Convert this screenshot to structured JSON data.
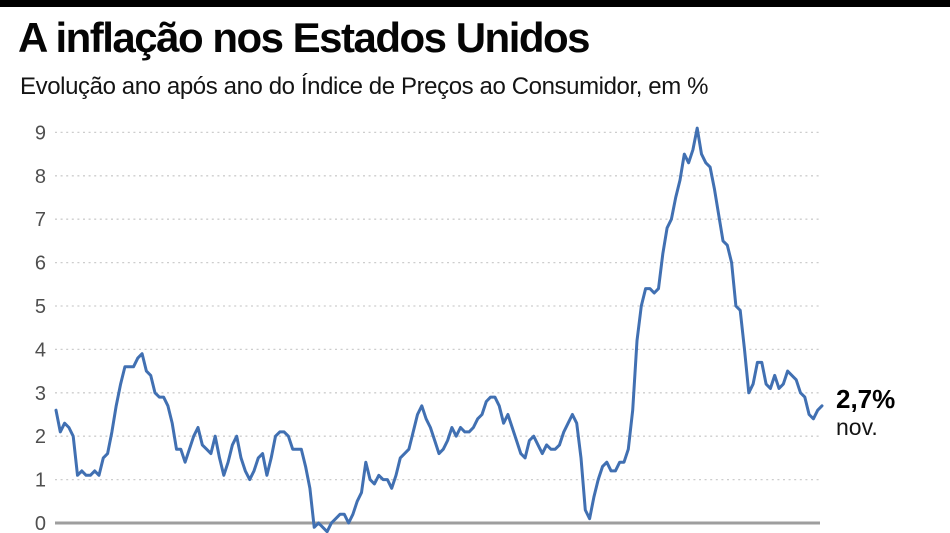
{
  "header": {
    "title": "A inflação nos Estados Unidos",
    "subtitle": "Evolução ano após ano do Índice de Preços ao Consumidor, em %"
  },
  "annotation": {
    "value": "2,7%",
    "month": "nov."
  },
  "colors": {
    "line": "#4170b2",
    "topbar": "#000000",
    "grid": "#cdcdcd",
    "axis": "#9e9e9e"
  },
  "chart_data": {
    "type": "line",
    "title": "A inflação nos Estados Unidos",
    "subtitle": "Evolução ano após ano do Índice de Preços ao Consumidor, em %",
    "unit": "%",
    "frequency": "monthly",
    "x_start": "2010-01",
    "x_end": "2024-11",
    "y_ticks": [
      0,
      1,
      2,
      3,
      4,
      5,
      6,
      7,
      8,
      9
    ],
    "ylim": [
      -0.3,
      9.3
    ],
    "grid": "horizontal-dashed",
    "legend": "none",
    "line_color": "#4170b2",
    "last_point_label": "2,7% nov.",
    "values": [
      2.6,
      2.1,
      2.3,
      2.2,
      2.0,
      1.1,
      1.2,
      1.1,
      1.1,
      1.2,
      1.1,
      1.5,
      1.6,
      2.1,
      2.7,
      3.2,
      3.6,
      3.6,
      3.6,
      3.8,
      3.9,
      3.5,
      3.4,
      3.0,
      2.9,
      2.9,
      2.7,
      2.3,
      1.7,
      1.7,
      1.4,
      1.7,
      2.0,
      2.2,
      1.8,
      1.7,
      1.6,
      2.0,
      1.5,
      1.1,
      1.4,
      1.8,
      2.0,
      1.5,
      1.2,
      1.0,
      1.2,
      1.5,
      1.6,
      1.1,
      1.5,
      2.0,
      2.1,
      2.1,
      2.0,
      1.7,
      1.7,
      1.7,
      1.3,
      0.8,
      -0.1,
      0.0,
      -0.1,
      -0.2,
      0.0,
      0.1,
      0.2,
      0.2,
      0.0,
      0.2,
      0.5,
      0.7,
      1.4,
      1.0,
      0.9,
      1.1,
      1.0,
      1.0,
      0.8,
      1.1,
      1.5,
      1.6,
      1.7,
      2.1,
      2.5,
      2.7,
      2.4,
      2.2,
      1.9,
      1.6,
      1.7,
      1.9,
      2.2,
      2.0,
      2.2,
      2.1,
      2.1,
      2.2,
      2.4,
      2.5,
      2.8,
      2.9,
      2.9,
      2.7,
      2.3,
      2.5,
      2.2,
      1.9,
      1.6,
      1.5,
      1.9,
      2.0,
      1.8,
      1.6,
      1.8,
      1.7,
      1.7,
      1.8,
      2.1,
      2.3,
      2.5,
      2.3,
      1.5,
      0.3,
      0.1,
      0.6,
      1.0,
      1.3,
      1.4,
      1.2,
      1.2,
      1.4,
      1.4,
      1.7,
      2.6,
      4.2,
      5.0,
      5.4,
      5.4,
      5.3,
      5.4,
      6.2,
      6.8,
      7.0,
      7.5,
      7.9,
      8.5,
      8.3,
      8.6,
      9.1,
      8.5,
      8.3,
      8.2,
      7.7,
      7.1,
      6.5,
      6.4,
      6.0,
      5.0,
      4.9,
      4.0,
      3.0,
      3.2,
      3.7,
      3.7,
      3.2,
      3.1,
      3.4,
      3.1,
      3.2,
      3.5,
      3.4,
      3.3,
      3.0,
      2.9,
      2.5,
      2.4,
      2.6,
      2.7
    ]
  }
}
